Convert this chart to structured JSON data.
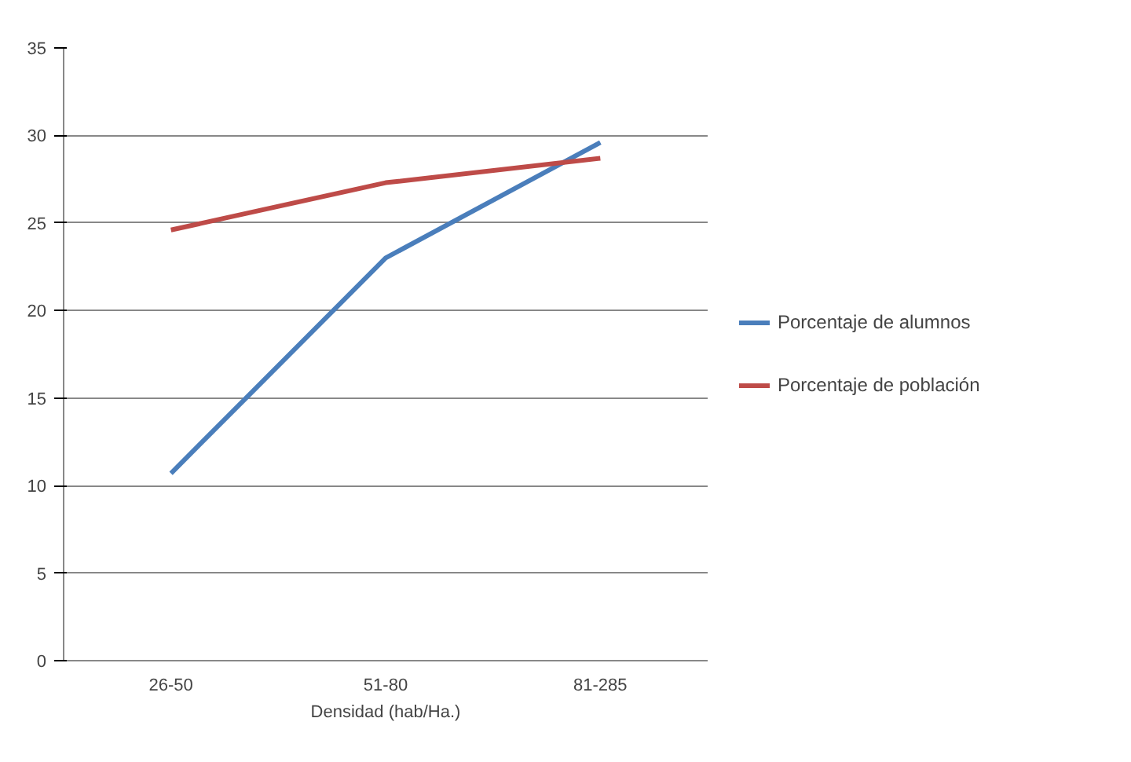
{
  "chart_data": {
    "type": "line",
    "xlabel": "Densidad (hab/Ha.)",
    "categories": [
      "26-50",
      "51-80",
      "81-285"
    ],
    "series": [
      {
        "name": "Porcentaje de alumnos",
        "color": "#4a7ebb",
        "values": [
          10.7,
          23.0,
          29.6
        ]
      },
      {
        "name": "Porcentaje de población",
        "color": "#be4b48",
        "values": [
          24.6,
          27.3,
          28.7
        ]
      }
    ],
    "ylim": [
      0,
      35
    ],
    "yticks": [
      0,
      5,
      10,
      15,
      20,
      25,
      30,
      35
    ],
    "grid": "y",
    "legend": "right",
    "line_style": "solid"
  }
}
